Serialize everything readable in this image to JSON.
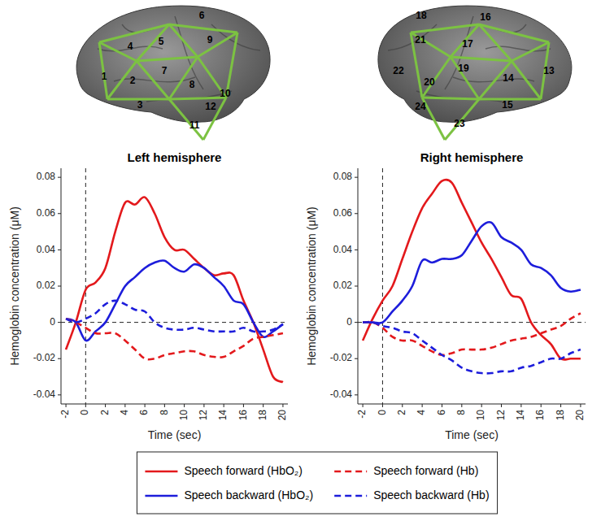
{
  "chart_data": [
    {
      "type": "line",
      "title": "Left hemisphere",
      "x_label": "Time (sec)",
      "y_label": "Hemoglobin concentration (μM)",
      "x": [
        -2,
        -1,
        0,
        1,
        2,
        3,
        4,
        5,
        6,
        7,
        8,
        9,
        10,
        11,
        12,
        13,
        14,
        15,
        16,
        17,
        18,
        19,
        20
      ],
      "xlim": [
        -2.5,
        20.5
      ],
      "xticks": [
        -2,
        0,
        2,
        4,
        6,
        8,
        10,
        12,
        14,
        16,
        18,
        20
      ],
      "ylim": [
        -0.045,
        0.085
      ],
      "yticks": [
        -0.04,
        -0.02,
        0,
        0.02,
        0.04,
        0.06,
        0.08
      ],
      "vlines": [
        0
      ],
      "hlines": [
        0
      ],
      "legend": "bottom",
      "series": [
        {
          "name": "Speech forward (HbO₂)",
          "color": "#e3191c",
          "line_style": "solid",
          "values": [
            -0.015,
            0.0,
            0.018,
            0.022,
            0.03,
            0.05,
            0.066,
            0.065,
            0.069,
            0.06,
            0.047,
            0.04,
            0.04,
            0.035,
            0.03,
            0.026,
            0.027,
            0.026,
            0.012,
            0.0,
            -0.015,
            -0.03,
            -0.033
          ]
        },
        {
          "name": "Speech backward (HbO₂)",
          "color": "#1d1ddb",
          "line_style": "solid",
          "values": [
            0.002,
            0.0,
            -0.01,
            -0.005,
            0.0,
            0.01,
            0.02,
            0.025,
            0.03,
            0.033,
            0.034,
            0.03,
            0.028,
            0.032,
            0.03,
            0.025,
            0.02,
            0.012,
            0.01,
            0.0,
            -0.008,
            -0.005,
            -0.001
          ]
        },
        {
          "name": "Speech forward (Hb)",
          "color": "#e3191c",
          "line_style": "dashed",
          "values": [
            0.002,
            0.0,
            -0.003,
            -0.006,
            -0.006,
            -0.006,
            -0.01,
            -0.015,
            -0.02,
            -0.02,
            -0.018,
            -0.017,
            -0.016,
            -0.016,
            -0.018,
            -0.019,
            -0.019,
            -0.016,
            -0.013,
            -0.009,
            -0.008,
            -0.007,
            -0.006
          ]
        },
        {
          "name": "Speech backward (Hb)",
          "color": "#1d1ddb",
          "line_style": "dashed",
          "values": [
            0.002,
            0.0,
            0.002,
            0.005,
            0.01,
            0.012,
            0.01,
            0.007,
            0.006,
            0.0,
            -0.003,
            -0.004,
            -0.004,
            -0.003,
            -0.004,
            -0.005,
            -0.005,
            -0.005,
            -0.003,
            -0.005,
            -0.005,
            -0.004,
            -0.001
          ]
        }
      ]
    },
    {
      "type": "line",
      "title": "Right hemisphere",
      "x_label": "Time (sec)",
      "y_label": "Hemoglobin concentration (μM)",
      "x": [
        -2,
        -1,
        0,
        1,
        2,
        3,
        4,
        5,
        6,
        7,
        8,
        9,
        10,
        11,
        12,
        13,
        14,
        15,
        16,
        17,
        18,
        19,
        20
      ],
      "xlim": [
        -2.5,
        20.5
      ],
      "xticks": [
        -2,
        0,
        2,
        4,
        6,
        8,
        10,
        12,
        14,
        16,
        18,
        20
      ],
      "ylim": [
        -0.045,
        0.085
      ],
      "yticks": [
        -0.04,
        -0.02,
        0,
        0.02,
        0.04,
        0.06,
        0.08
      ],
      "vlines": [
        0
      ],
      "hlines": [
        0
      ],
      "series": [
        {
          "color": "#e3191c",
          "line_style": "solid",
          "values": [
            -0.01,
            0.002,
            0.012,
            0.02,
            0.035,
            0.05,
            0.063,
            0.071,
            0.078,
            0.077,
            0.066,
            0.055,
            0.044,
            0.035,
            0.025,
            0.015,
            0.013,
            0.0,
            -0.007,
            -0.012,
            -0.02,
            -0.02,
            -0.02
          ]
        },
        {
          "color": "#1d1ddb",
          "line_style": "solid",
          "values": [
            0.0,
            0.0,
            0.0,
            0.006,
            0.012,
            0.02,
            0.034,
            0.033,
            0.035,
            0.035,
            0.037,
            0.045,
            0.053,
            0.055,
            0.047,
            0.044,
            0.04,
            0.032,
            0.03,
            0.026,
            0.019,
            0.017,
            0.018
          ]
        },
        {
          "color": "#e3191c",
          "line_style": "dashed",
          "values": [
            0.0,
            0.0,
            -0.003,
            -0.008,
            -0.01,
            -0.01,
            -0.013,
            -0.016,
            -0.018,
            -0.017,
            -0.015,
            -0.015,
            -0.015,
            -0.014,
            -0.012,
            -0.01,
            -0.009,
            -0.008,
            -0.006,
            -0.004,
            -0.002,
            0.002,
            0.005
          ]
        },
        {
          "color": "#1d1ddb",
          "line_style": "dashed",
          "values": [
            0.0,
            0.0,
            -0.002,
            -0.003,
            -0.005,
            -0.006,
            -0.01,
            -0.014,
            -0.018,
            -0.021,
            -0.025,
            -0.027,
            -0.028,
            -0.028,
            -0.027,
            -0.027,
            -0.025,
            -0.024,
            -0.022,
            -0.02,
            -0.02,
            -0.017,
            -0.015
          ]
        }
      ]
    }
  ],
  "brain_views": [
    {
      "channels": [
        1,
        2,
        3,
        4,
        5,
        6,
        7,
        8,
        9,
        10,
        11,
        12
      ]
    },
    {
      "channels": [
        13,
        14,
        15,
        16,
        17,
        18,
        19,
        20,
        21,
        22,
        23,
        24
      ]
    }
  ]
}
